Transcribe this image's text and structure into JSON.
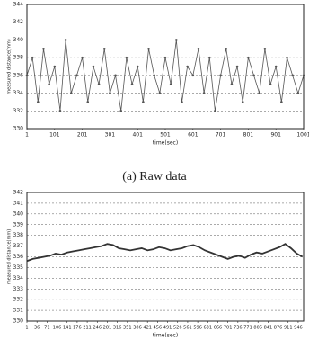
{
  "chart_data": [
    {
      "type": "line",
      "caption": "(a) Raw data",
      "x_label": "time(sec)",
      "y_label": "measured distance(mm)",
      "xlim": [
        1,
        1001
      ],
      "ylim": [
        330,
        344
      ],
      "xticks": [
        1,
        101,
        201,
        301,
        401,
        501,
        601,
        701,
        801,
        901,
        1001
      ],
      "yticks": [
        330,
        332,
        334,
        336,
        338,
        340,
        342,
        344
      ],
      "grid": true,
      "markers": true,
      "series": [
        {
          "color": "#555555",
          "x": [
            1,
            21,
            41,
            61,
            81,
            101,
            121,
            141,
            161,
            181,
            201,
            221,
            241,
            261,
            281,
            301,
            321,
            341,
            361,
            381,
            401,
            421,
            441,
            461,
            481,
            501,
            521,
            541,
            561,
            581,
            601,
            621,
            641,
            661,
            681,
            701,
            721,
            741,
            761,
            781,
            801,
            821,
            841,
            861,
            881,
            901,
            921,
            941,
            961,
            981,
            1001
          ],
          "values": [
            336,
            338,
            333,
            339,
            335,
            337,
            332,
            340,
            334,
            336,
            338,
            333,
            337,
            335,
            339,
            334,
            336,
            332,
            338,
            335,
            337,
            333,
            339,
            336,
            334,
            338,
            335,
            340,
            333,
            337,
            336,
            339,
            334,
            338,
            332,
            336,
            339,
            335,
            337,
            333,
            338,
            336,
            334,
            339,
            335,
            337,
            333,
            338,
            336,
            334,
            336
          ]
        }
      ]
    },
    {
      "type": "line",
      "x_label": "time(sec)",
      "y_label": "measured distance(mm)",
      "xlim": [
        1,
        965
      ],
      "ylim": [
        330,
        342
      ],
      "xticks": [
        1,
        36,
        71,
        106,
        141,
        176,
        211,
        246,
        281,
        316,
        351,
        386,
        421,
        456,
        491,
        526,
        561,
        596,
        631,
        666,
        701,
        736,
        771,
        806,
        841,
        876,
        911,
        946
      ],
      "yticks": [
        330,
        331,
        332,
        333,
        334,
        335,
        336,
        337,
        338,
        339,
        340,
        341,
        342
      ],
      "grid": true,
      "markers": false,
      "series": [
        {
          "color": "#333333",
          "x": [
            1,
            21,
            41,
            61,
            81,
            101,
            121,
            141,
            161,
            181,
            201,
            221,
            241,
            261,
            281,
            301,
            321,
            341,
            361,
            381,
            401,
            421,
            441,
            461,
            481,
            501,
            521,
            541,
            561,
            581,
            601,
            621,
            641,
            661,
            681,
            701,
            721,
            741,
            761,
            781,
            801,
            821,
            841,
            861,
            881,
            901,
            921,
            941,
            961
          ],
          "values": [
            335.6,
            335.8,
            335.9,
            336.0,
            336.1,
            336.3,
            336.2,
            336.4,
            336.5,
            336.6,
            336.7,
            336.8,
            336.9,
            337.0,
            337.2,
            337.1,
            336.8,
            336.7,
            336.6,
            336.7,
            336.8,
            336.6,
            336.7,
            336.9,
            336.8,
            336.6,
            336.7,
            336.8,
            337.0,
            337.1,
            336.9,
            336.6,
            336.4,
            336.2,
            336.0,
            335.8,
            336.0,
            336.1,
            335.9,
            336.2,
            336.4,
            336.3,
            336.5,
            336.7,
            336.9,
            337.2,
            336.8,
            336.3,
            336.0
          ]
        }
      ]
    }
  ]
}
